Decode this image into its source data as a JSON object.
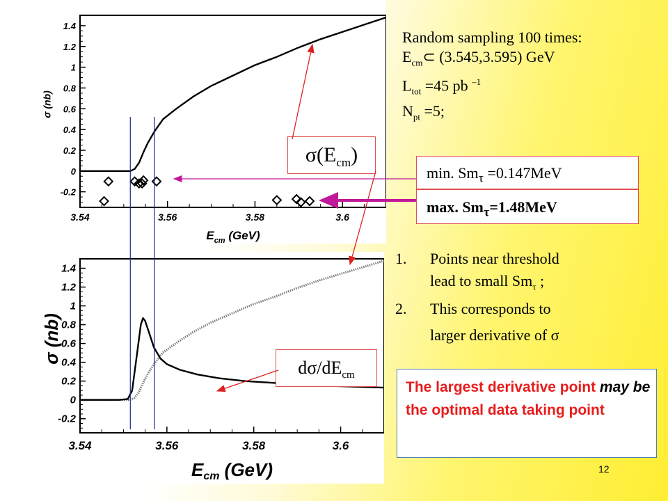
{
  "chart_data": [
    {
      "type": "scatter",
      "panel": "top",
      "ylabel": "σ (nb)",
      "xlabel": "E_cm (GeV)",
      "xlim": [
        3.54,
        3.61
      ],
      "ylim": [
        -0.35,
        1.5
      ],
      "xticks": [
        "3.54",
        "3.56",
        "3.58",
        "3.6"
      ],
      "yticks": [
        "1.4",
        "1.2",
        "1",
        "0.8",
        "0.6",
        "0.4",
        "0.2",
        "0",
        "-0.2"
      ],
      "series": [
        {
          "kind": "line",
          "x": [
            3.54,
            3.548,
            3.5515,
            3.5525,
            3.5535,
            3.5545,
            3.5555,
            3.557,
            3.559,
            3.562,
            3.566,
            3.57,
            3.575,
            3.58,
            3.585,
            3.59,
            3.595,
            3.6,
            3.605,
            3.61
          ],
          "y": [
            0,
            0,
            0,
            0.02,
            0.08,
            0.18,
            0.27,
            0.38,
            0.5,
            0.6,
            0.72,
            0.82,
            0.92,
            1.02,
            1.1,
            1.19,
            1.27,
            1.34,
            1.41,
            1.48
          ]
        },
        {
          "kind": "markers",
          "x": [
            3.5455,
            3.5465,
            3.5525,
            3.5535,
            3.5545,
            3.5542,
            3.5575,
            3.585,
            3.5895,
            3.5905,
            3.5925
          ],
          "y": [
            -0.29,
            -0.1,
            -0.1,
            -0.12,
            -0.09,
            -0.12,
            -0.1,
            -0.28,
            -0.27,
            -0.3,
            -0.29
          ]
        }
      ]
    },
    {
      "type": "line",
      "panel": "bottom",
      "ylabel": "σ (nb)",
      "xlabel": "E_cm (GeV)",
      "xlim": [
        3.54,
        3.61
      ],
      "ylim": [
        -0.35,
        1.5
      ],
      "xticks": [
        "3.54",
        "3.56",
        "3.58",
        "3.6"
      ],
      "yticks": [
        "1.4",
        "1.2",
        "1",
        "0.8",
        "0.6",
        "0.4",
        "0.2",
        "0",
        "-0.2"
      ],
      "series": [
        {
          "kind": "dotted",
          "x": [
            3.54,
            3.548,
            3.5515,
            3.5525,
            3.5535,
            3.5545,
            3.5555,
            3.557,
            3.559,
            3.562,
            3.566,
            3.57,
            3.575,
            3.58,
            3.585,
            3.59,
            3.595,
            3.6,
            3.605,
            3.61
          ],
          "y": [
            0,
            0,
            0,
            0.02,
            0.08,
            0.18,
            0.27,
            0.38,
            0.5,
            0.6,
            0.72,
            0.82,
            0.92,
            1.02,
            1.1,
            1.19,
            1.27,
            1.34,
            1.41,
            1.48
          ]
        },
        {
          "kind": "line",
          "x": [
            3.54,
            3.549,
            3.551,
            3.552,
            3.553,
            3.554,
            3.5545,
            3.555,
            3.556,
            3.557,
            3.5585,
            3.56,
            3.563,
            3.567,
            3.572,
            3.578,
            3.585,
            3.592,
            3.6,
            3.61
          ],
          "y": [
            0,
            0,
            0.01,
            0.1,
            0.45,
            0.8,
            0.87,
            0.84,
            0.7,
            0.56,
            0.44,
            0.38,
            0.32,
            0.27,
            0.23,
            0.2,
            0.18,
            0.16,
            0.145,
            0.13
          ]
        }
      ]
    }
  ],
  "vlines_x": [
    3.5515,
    3.557
  ],
  "info": {
    "line1": "Random sampling 100 times:",
    "line2_prefix": "E",
    "line2_sub": "cm",
    "line2_rest": "⊂ (3.545,3.595) GeV",
    "line3_prefix": "L",
    "line3_sub": "tot",
    "line3_rest": " =45 pb ",
    "line3_sup": "–1",
    "line4_prefix": "N",
    "line4_sub": "pt",
    "line4_rest": " =5;"
  },
  "sigma_label": {
    "main": "σ(E",
    "sub": "cm",
    "close": ")"
  },
  "min_label": {
    "prefix": "min. Sm",
    "sub": "τ",
    "rest": " =0.147MeV"
  },
  "max_label": {
    "prefix": "max. Sm",
    "sub": "τ",
    "rest": "=1.48MeV"
  },
  "deriv_label": {
    "main": "dσ/dE",
    "sub": "cm"
  },
  "points": [
    {
      "num": "1.",
      "text1": "Points near threshold",
      "text2_prefix": "lead to small Sm",
      "text2_sub": "τ",
      "text2_rest": " ;"
    },
    {
      "num": "2.",
      "text1": "This corresponds to",
      "text2": "larger derivative of σ"
    }
  ],
  "conclusion": {
    "part1": "The largest  derivative point ",
    "italic": "may be",
    "part2": " the optimal data taking point"
  },
  "page_number": "12",
  "colors": {
    "arrow_red": "#e02020",
    "arrow_magenta": "#c0189a",
    "vline_blue": "#1a2a8a",
    "box_border": "#e05050"
  }
}
